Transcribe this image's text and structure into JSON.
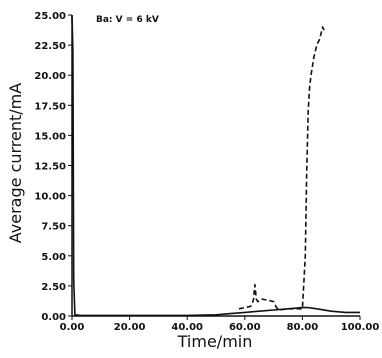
{
  "chart_data": {
    "type": "line",
    "title": "",
    "annotation": "Ba: V = 6 kV",
    "xlabel": "Time/min",
    "ylabel": "Average current/mA",
    "xlim": [
      0,
      100
    ],
    "ylim": [
      0,
      25
    ],
    "x_ticks": [
      "0.00",
      "20.00",
      "40.00",
      "60.00",
      "80.00",
      "100.00"
    ],
    "y_ticks": [
      "0.00",
      "2.50",
      "5.00",
      "7.50",
      "10.00",
      "12.50",
      "15.00",
      "17.50",
      "20.00",
      "22.50",
      "25.00"
    ],
    "grid": false,
    "legend": "none",
    "series": [
      {
        "style": "solid",
        "x": [
          0,
          0.3,
          0.6,
          1,
          3,
          10,
          20,
          30,
          40,
          50,
          55,
          60,
          65,
          70,
          75,
          80,
          82
        ],
        "y": [
          25,
          22,
          3,
          0.1,
          0.05,
          0.05,
          0.05,
          0.05,
          0.05,
          0.1,
          0.2,
          0.3,
          0.4,
          0.5,
          0.6,
          0.7,
          0.7
        ]
      },
      {
        "style": "dashed",
        "x": [
          58,
          62,
          63,
          63.5,
          64,
          64.5,
          66,
          68,
          70,
          71,
          72,
          75,
          80,
          81,
          81.5,
          82,
          82.5,
          83,
          84,
          85,
          86,
          87,
          88
        ],
        "y": [
          0.6,
          0.8,
          1.3,
          2.6,
          1.4,
          1.2,
          1.4,
          1.3,
          1.2,
          0.7,
          0.5,
          0.6,
          0.6,
          5,
          12,
          17,
          19,
          20,
          21.5,
          22.5,
          23,
          24,
          23.5
        ]
      },
      {
        "style": "solid",
        "x": [
          82,
          85,
          90,
          95,
          100
        ],
        "y": [
          0.7,
          0.6,
          0.4,
          0.3,
          0.3
        ]
      }
    ]
  }
}
